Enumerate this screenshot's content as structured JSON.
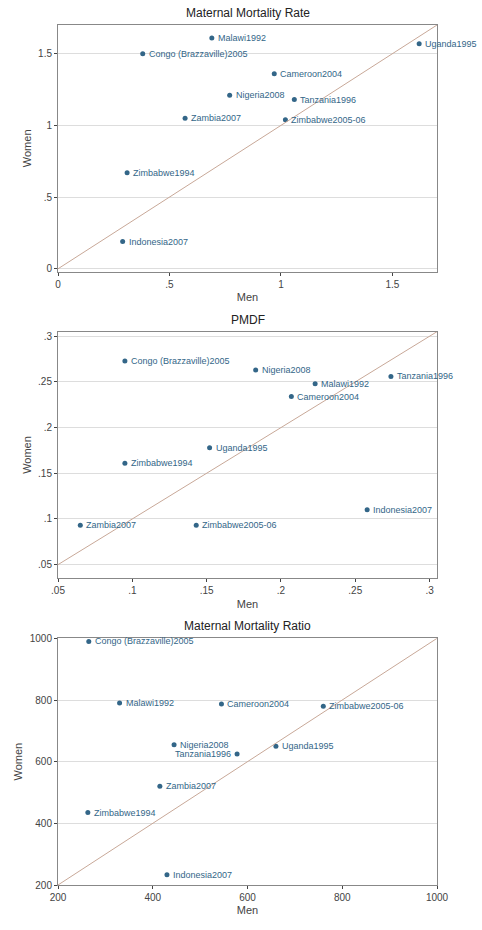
{
  "chart_data": [
    {
      "type": "scatter",
      "title": "Maternal Mortality Rate",
      "xlabel": "Men",
      "ylabel": "Women",
      "xlim": [
        0,
        1.7
      ],
      "ylim": [
        -0.02,
        1.7
      ],
      "xticks": [
        0,
        {
          "value": 0.5,
          "label": ".5"
        },
        1,
        1.5
      ],
      "yticks": [
        0,
        {
          "value": 0.5,
          "label": ".5"
        },
        1,
        1.5
      ],
      "grid": "y",
      "series": [
        {
          "type": "scatter",
          "color": "#336688",
          "x": [
            0.69,
            0.38,
            0.97,
            0.77,
            1.06,
            0.57,
            1.02,
            0.31,
            0.29,
            1.62
          ],
          "values": [
            1.61,
            1.5,
            1.36,
            1.21,
            1.18,
            1.05,
            1.04,
            0.67,
            0.19,
            1.57
          ],
          "labels": [
            "Malawi1992",
            "Congo (Brazzaville)2005",
            "Cameroon2004",
            "Nigeria2008",
            "Tanzania1996",
            "Zambia2007",
            "Zimbabwe2005-06",
            "Zimbabwe1994",
            "Indonesia2007",
            "Uganda1995"
          ]
        },
        {
          "type": "line",
          "color": "#c8a898",
          "x": [
            0,
            1.7
          ],
          "values": [
            0,
            1.7
          ]
        }
      ]
    },
    {
      "type": "scatter",
      "title": "PMDF",
      "xlabel": "Men",
      "ylabel": "Women",
      "xlim": [
        0.05,
        0.305
      ],
      "ylim": [
        0.035,
        0.305
      ],
      "xticks": [
        {
          "value": 0.05,
          "label": ".05"
        },
        {
          "value": 0.1,
          "label": ".1"
        },
        {
          "value": 0.15,
          "label": ".15"
        },
        {
          "value": 0.2,
          "label": ".2"
        },
        {
          "value": 0.25,
          "label": ".25"
        },
        {
          "value": 0.3,
          "label": ".3"
        }
      ],
      "yticks": [
        {
          "value": 0.05,
          "label": ".05"
        },
        {
          "value": 0.1,
          "label": ".1"
        },
        {
          "value": 0.15,
          "label": ".15"
        },
        {
          "value": 0.2,
          "label": ".2"
        },
        {
          "value": 0.25,
          "label": ".25"
        },
        {
          "value": 0.3,
          "label": ".3"
        }
      ],
      "grid": "y",
      "series": [
        {
          "type": "scatter",
          "color": "#336688",
          "x": [
            0.095,
            0.183,
            0.274,
            0.223,
            0.207,
            0.152,
            0.095,
            0.258,
            0.065,
            0.143
          ],
          "values": [
            0.273,
            0.263,
            0.256,
            0.248,
            0.234,
            0.178,
            0.161,
            0.11,
            0.093,
            0.093
          ],
          "labels": [
            "Congo (Brazzaville)2005",
            "Nigeria2008",
            "Tanzania1996",
            "Malawi1992",
            "Cameroon2004",
            "Uganda1995",
            "Zimbabwe1994",
            "Indonesia2007",
            "Zambia2007",
            "Zimbabwe2005-06"
          ]
        },
        {
          "type": "line",
          "color": "#c8a898",
          "x": [
            0.05,
            0.305
          ],
          "values": [
            0.05,
            0.305
          ]
        }
      ]
    },
    {
      "type": "scatter",
      "title": "Maternal Mortality Ratio",
      "xlabel": "Men",
      "ylabel": "Women",
      "xlim": [
        200,
        1000
      ],
      "ylim": [
        200,
        1000
      ],
      "xticks": [
        200,
        400,
        600,
        800,
        1000
      ],
      "yticks": [
        200,
        400,
        600,
        800,
        1000
      ],
      "grid": "y",
      "series": [
        {
          "type": "scatter",
          "color": "#336688",
          "x": [
            265,
            330,
            545,
            760,
            445,
            660,
            578,
            415,
            263,
            430
          ],
          "values": [
            990,
            790,
            787,
            780,
            655,
            650,
            625,
            520,
            435,
            233
          ],
          "labels": [
            "Congo (Brazzaville)2005",
            "Malawi1992",
            "Cameroon2004",
            "Zimbabwe2005-06",
            "Nigeria2008",
            "Uganda1995",
            "Tanzania1996",
            "Zambia2007",
            "Zimbabwe1994",
            "Indonesia2007"
          ]
        },
        {
          "type": "line",
          "color": "#c8a898",
          "x": [
            200,
            1000
          ],
          "values": [
            200,
            1000
          ]
        }
      ]
    }
  ]
}
